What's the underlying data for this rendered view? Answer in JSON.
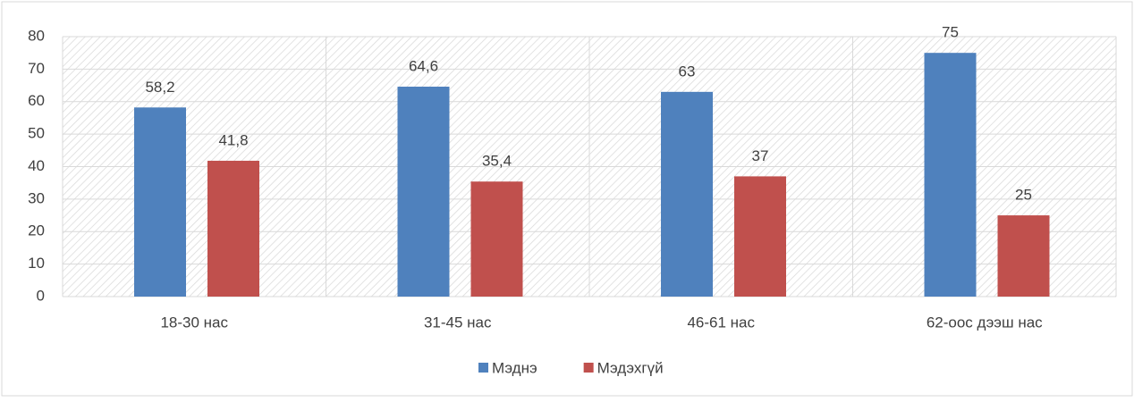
{
  "chart_data": {
    "type": "bar",
    "categories": [
      "18-30 нас",
      "31-45 нас",
      "46-61 нас",
      "62-оос дээш нас"
    ],
    "series": [
      {
        "name": "Мэднэ",
        "color": "#4f81bd",
        "values": [
          58.2,
          64.6,
          63,
          75
        ],
        "value_labels": [
          "58,2",
          "64,6",
          "63",
          "75"
        ]
      },
      {
        "name": "Мэдэхгүй",
        "color": "#c0504d",
        "values": [
          41.8,
          35.4,
          37,
          25
        ],
        "value_labels": [
          "41,8",
          "35,4",
          "37",
          "25"
        ]
      }
    ],
    "ylim": [
      0,
      80
    ],
    "yticks": [
      0,
      10,
      20,
      30,
      40,
      50,
      60,
      70,
      80
    ],
    "grid": true,
    "legend": "bottom"
  }
}
